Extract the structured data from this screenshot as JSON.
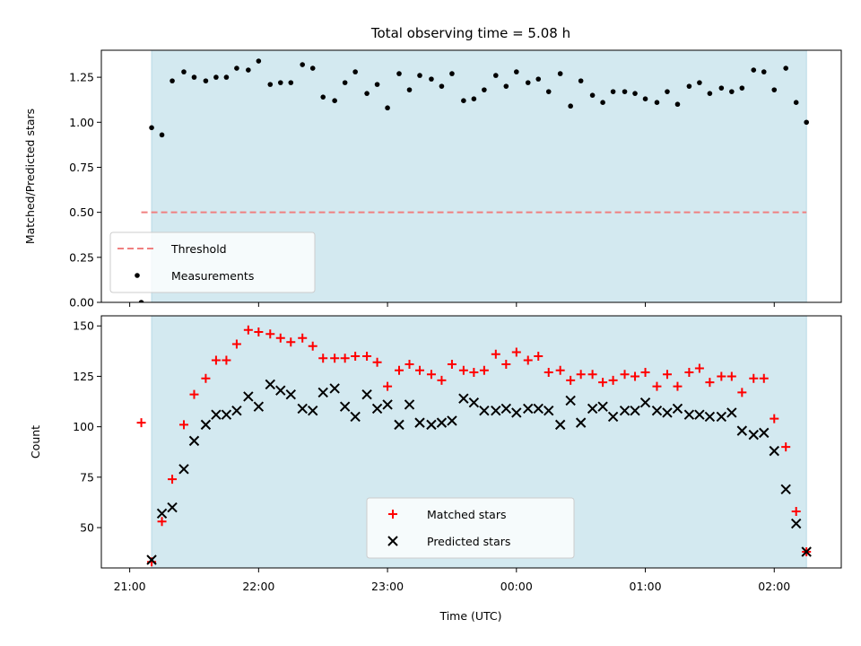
{
  "figure": {
    "title": "Total observing time = 5.08 h",
    "xlabel": "Time (UTC)",
    "span_color": "#d3e9f0",
    "x_tick_labels": [
      "21:00",
      "22:00",
      "23:00",
      "00:00",
      "01:00",
      "02:00"
    ]
  },
  "chart_data": [
    {
      "type": "scatter",
      "panel": "top",
      "ylabel": "Matched/Predicted stars",
      "ylim": [
        0.0,
        1.4
      ],
      "yticks": [
        0.0,
        0.25,
        0.5,
        0.75,
        1.0,
        1.25
      ],
      "ytick_labels": [
        "0.00",
        "0.25",
        "0.50",
        "0.75",
        "1.00",
        "1.25"
      ],
      "xticks": [
        0,
        1,
        2,
        3,
        4,
        5
      ],
      "xlim": [
        -0.22,
        5.52
      ],
      "observing_span": [
        0.17,
        5.25
      ],
      "legend": {
        "placement": "lower-left",
        "entries": [
          "Threshold",
          "Measurements"
        ]
      },
      "threshold": {
        "name": "Threshold",
        "value": 0.5,
        "x_range": [
          0.09,
          5.25
        ],
        "color": "#f08080",
        "style": "dashed"
      },
      "series": [
        {
          "name": "Measurements",
          "color": "#000000",
          "marker": "dot",
          "x": [
            0.09,
            0.17,
            0.25,
            0.33,
            0.42,
            0.5,
            0.59,
            0.67,
            0.75,
            0.83,
            0.92,
            1.0,
            1.09,
            1.17,
            1.25,
            1.34,
            1.42,
            1.5,
            1.59,
            1.67,
            1.75,
            1.84,
            1.92,
            2.0,
            2.09,
            2.17,
            2.25,
            2.34,
            2.42,
            2.5,
            2.59,
            2.67,
            2.75,
            2.84,
            2.92,
            3.0,
            3.09,
            3.17,
            3.25,
            3.34,
            3.42,
            3.5,
            3.59,
            3.67,
            3.75,
            3.84,
            3.92,
            4.0,
            4.09,
            4.17,
            4.25,
            4.34,
            4.42,
            4.5,
            4.59,
            4.67,
            4.75,
            4.84,
            4.92,
            5.0,
            5.09,
            5.17,
            5.25
          ],
          "y": [
            0.0,
            0.97,
            0.93,
            1.23,
            1.28,
            1.25,
            1.23,
            1.25,
            1.25,
            1.3,
            1.29,
            1.34,
            1.21,
            1.22,
            1.22,
            1.32,
            1.3,
            1.14,
            1.12,
            1.22,
            1.28,
            1.16,
            1.21,
            1.08,
            1.27,
            1.18,
            1.26,
            1.24,
            1.2,
            1.27,
            1.12,
            1.13,
            1.18,
            1.26,
            1.2,
            1.28,
            1.22,
            1.24,
            1.17,
            1.27,
            1.09,
            1.23,
            1.15,
            1.11,
            1.17,
            1.17,
            1.16,
            1.13,
            1.11,
            1.17,
            1.1,
            1.2,
            1.22,
            1.16,
            1.19,
            1.17,
            1.19,
            1.29,
            1.28,
            1.18,
            1.3,
            1.11,
            1.0
          ]
        }
      ]
    },
    {
      "type": "scatter",
      "panel": "bottom",
      "ylabel": "Count",
      "ylim": [
        30,
        155
      ],
      "yticks": [
        50,
        75,
        100,
        125,
        150
      ],
      "ytick_labels": [
        "50",
        "75",
        "100",
        "125",
        "150"
      ],
      "xticks": [
        0,
        1,
        2,
        3,
        4,
        5
      ],
      "xlim": [
        -0.22,
        5.52
      ],
      "observing_span": [
        0.17,
        5.25
      ],
      "legend": {
        "placement": "lower-center",
        "entries": [
          "Matched stars",
          "Predicted stars"
        ]
      },
      "series": [
        {
          "name": "Matched stars",
          "color": "#ff0000",
          "marker": "plus",
          "x": [
            0.09,
            0.17,
            0.25,
            0.33,
            0.42,
            0.5,
            0.59,
            0.67,
            0.75,
            0.83,
            0.92,
            1.0,
            1.09,
            1.17,
            1.25,
            1.34,
            1.42,
            1.5,
            1.59,
            1.67,
            1.75,
            1.84,
            1.92,
            2.0,
            2.09,
            2.17,
            2.25,
            2.34,
            2.42,
            2.5,
            2.59,
            2.67,
            2.75,
            2.84,
            2.92,
            3.0,
            3.09,
            3.17,
            3.25,
            3.34,
            3.42,
            3.5,
            3.59,
            3.67,
            3.75,
            3.84,
            3.92,
            4.0,
            4.09,
            4.17,
            4.25,
            4.34,
            4.42,
            4.5,
            4.59,
            4.67,
            4.75,
            4.84,
            4.92,
            5.0,
            5.09,
            5.17,
            5.25
          ],
          "y": [
            102,
            33,
            53,
            74,
            101,
            116,
            124,
            133,
            133,
            141,
            148,
            147,
            146,
            144,
            142,
            144,
            140,
            134,
            134,
            134,
            135,
            135,
            132,
            120,
            128,
            131,
            128,
            126,
            123,
            131,
            128,
            127,
            128,
            136,
            131,
            137,
            133,
            135,
            127,
            128,
            123,
            126,
            126,
            122,
            123,
            126,
            125,
            127,
            120,
            126,
            120,
            127,
            129,
            122,
            125,
            125,
            117,
            124,
            124,
            104,
            90,
            58,
            38
          ]
        },
        {
          "name": "Predicted stars",
          "color": "#000000",
          "marker": "cross",
          "x": [
            0.17,
            0.25,
            0.33,
            0.42,
            0.5,
            0.59,
            0.67,
            0.75,
            0.83,
            0.92,
            1.0,
            1.09,
            1.17,
            1.25,
            1.34,
            1.42,
            1.5,
            1.59,
            1.67,
            1.75,
            1.84,
            1.92,
            2.0,
            2.09,
            2.17,
            2.25,
            2.34,
            2.42,
            2.5,
            2.59,
            2.67,
            2.75,
            2.84,
            2.92,
            3.0,
            3.09,
            3.17,
            3.25,
            3.34,
            3.42,
            3.5,
            3.59,
            3.67,
            3.75,
            3.84,
            3.92,
            4.0,
            4.09,
            4.17,
            4.25,
            4.34,
            4.42,
            4.5,
            4.59,
            4.67,
            4.75,
            4.84,
            4.92,
            5.0,
            5.09,
            5.17,
            5.25
          ],
          "y": [
            34,
            57,
            60,
            79,
            93,
            101,
            106,
            106,
            108,
            115,
            110,
            121,
            118,
            116,
            109,
            108,
            117,
            119,
            110,
            105,
            116,
            109,
            111,
            101,
            111,
            102,
            101,
            102,
            103,
            114,
            112,
            108,
            108,
            109,
            107,
            109,
            109,
            108,
            101,
            113,
            102,
            109,
            110,
            105,
            108,
            108,
            112,
            108,
            107,
            109,
            106,
            106,
            105,
            105,
            107,
            98,
            96,
            97,
            88,
            69,
            52,
            38
          ]
        }
      ]
    }
  ]
}
